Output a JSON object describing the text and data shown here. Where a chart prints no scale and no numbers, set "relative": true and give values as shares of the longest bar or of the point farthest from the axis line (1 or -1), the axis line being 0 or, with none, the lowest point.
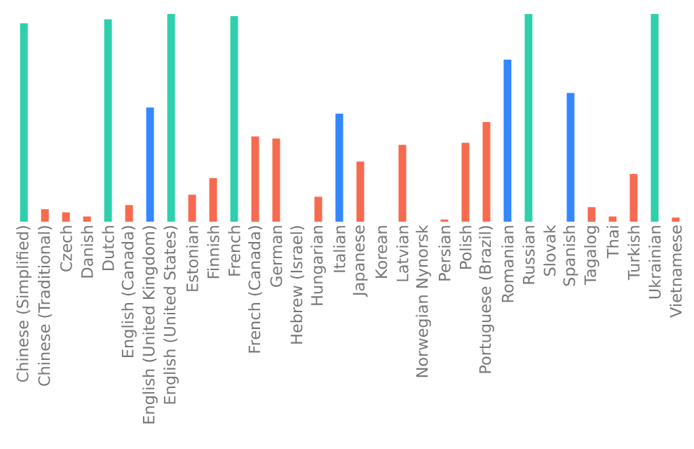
{
  "chart_data": {
    "type": "bar",
    "relative": true,
    "categories": [
      "Chinese (Simplified)",
      "Chinese (Traditional)",
      "Czech",
      "Danish",
      "Dutch",
      "English (Canada)",
      "English (United Kingdom)",
      "English (United States)",
      "Estonian",
      "Finnish",
      "French",
      "French (Canada)",
      "German",
      "Hebrew (Israel)",
      "Hungarian",
      "Italian",
      "Japanese",
      "Korean",
      "Latvian",
      "Norwegian Nynorsk",
      "Persian",
      "Polish",
      "Portuguese (Brazil)",
      "Romanian",
      "Russian",
      "Slovak",
      "Spanish",
      "Tagalog",
      "Thai",
      "Turkish",
      "Ukrainian",
      "Vietnamese"
    ],
    "values": [
      0.955,
      0.06,
      0.045,
      0.025,
      0.975,
      0.08,
      0.55,
      1,
      0.13,
      0.21,
      0.99,
      0.41,
      0.4,
      0,
      0.12,
      0.52,
      0.29,
      0,
      0.37,
      0,
      0.01,
      0.38,
      0.48,
      0.78,
      1,
      0,
      0.62,
      0.07,
      0.025,
      0.23,
      1,
      0.02
    ],
    "colors": [
      "#2ecfac",
      "#f76a4f",
      "#f76a4f",
      "#f76a4f",
      "#2ecfac",
      "#f76a4f",
      "#3388ff",
      "#2ecfac",
      "#f76a4f",
      "#f76a4f",
      "#2ecfac",
      "#f76a4f",
      "#f76a4f",
      "#f76a4f",
      "#f76a4f",
      "#3388ff",
      "#f76a4f",
      "#f76a4f",
      "#f76a4f",
      "#f76a4f",
      "#f76a4f",
      "#f76a4f",
      "#f76a4f",
      "#3388ff",
      "#2ecfac",
      "#f76a4f",
      "#3388ff",
      "#f76a4f",
      "#f76a4f",
      "#f76a4f",
      "#2ecfac",
      "#f76a4f"
    ]
  }
}
